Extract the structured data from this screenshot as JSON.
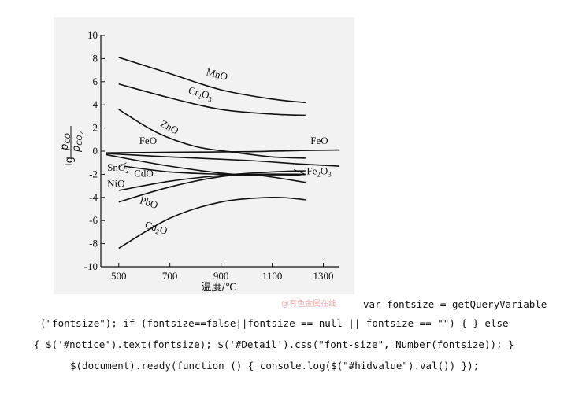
{
  "chart_data": {
    "type": "line",
    "xlabel": "温度/℃",
    "ylabel_main": "lg",
    "ylabel_num": "p",
    "ylabel_num_sub": "CO",
    "ylabel_den": "p",
    "ylabel_den_sub": "CO",
    "ylabel_den_sub2": "2",
    "xlim": [
      430,
      1360
    ],
    "ylim": [
      -10,
      10
    ],
    "xticks": [
      500,
      700,
      900,
      1100,
      1300
    ],
    "yticks": [
      10,
      8,
      6,
      4,
      2,
      0,
      -2,
      -4,
      -6,
      -8,
      -10
    ],
    "grid": false,
    "series": [
      {
        "name": "MnO",
        "x": [
          500,
          700,
          900,
          1100,
          1230
        ],
        "y": [
          8.1,
          6.7,
          5.3,
          4.5,
          4.2
        ]
      },
      {
        "name": "Cr2O3",
        "x": [
          500,
          700,
          900,
          1100,
          1230
        ],
        "y": [
          5.8,
          4.6,
          3.6,
          3.2,
          3.1
        ]
      },
      {
        "name": "ZnO",
        "x": [
          500,
          650,
          800,
          950,
          1100,
          1230
        ],
        "y": [
          3.6,
          1.6,
          0.4,
          -0.1,
          -0.5,
          -0.6
        ]
      },
      {
        "name": "FeO",
        "x": [
          450,
          700,
          1000,
          1200,
          1360
        ],
        "y": [
          -0.15,
          -0.1,
          -0.05,
          0.05,
          0.1
        ]
      },
      {
        "name": "Fe2O3",
        "x": [
          450,
          700,
          1000,
          1200,
          1360
        ],
        "y": [
          -0.2,
          -0.5,
          -0.8,
          -1.1,
          -1.3
        ]
      },
      {
        "name": "SnO2",
        "x": [
          450,
          700,
          950,
          1150,
          1230
        ],
        "y": [
          -0.3,
          -1.3,
          -2.0,
          -2.1,
          -2.0
        ]
      },
      {
        "name": "CdO",
        "x": [
          520,
          700,
          900,
          1050,
          1230
        ],
        "y": [
          -1.3,
          -1.8,
          -2.0,
          -2.1,
          -2.7
        ]
      },
      {
        "name": "NiO",
        "x": [
          500,
          700,
          900,
          1100,
          1230
        ],
        "y": [
          -3.4,
          -2.6,
          -2.1,
          -1.8,
          -1.7
        ]
      },
      {
        "name": "PbO",
        "x": [
          500,
          700,
          900,
          1050,
          1230
        ],
        "y": [
          -4.4,
          -3.1,
          -2.2,
          -2.0,
          -2.0
        ]
      },
      {
        "name": "Cu2O",
        "x": [
          500,
          700,
          900,
          1100,
          1230
        ],
        "y": [
          -8.4,
          -5.8,
          -4.4,
          -4.0,
          -4.2
        ]
      }
    ],
    "labels": [
      {
        "base": "MnO",
        "sub": "",
        "tail": "",
        "x": 840,
        "y": 6.6,
        "rotate": 15
      },
      {
        "base": "Cr",
        "sub": "2",
        "tail": "O",
        "sub2": "3",
        "x": 770,
        "y": 5.0,
        "rotate": 15
      },
      {
        "base": "ZnO",
        "sub": "",
        "tail": "",
        "x": 660,
        "y": 2.2,
        "rotate": 28
      },
      {
        "base": "FeO",
        "sub": "",
        "tail": "",
        "x": 580,
        "y": 0.6,
        "rotate": 0
      },
      {
        "base": "FeO",
        "sub": "",
        "tail": "",
        "x": 1250,
        "y": 0.6,
        "rotate": 0
      },
      {
        "base": "Fe",
        "sub": "2",
        "tail": "O",
        "sub2": "3",
        "x": 1235,
        "y": -2.0,
        "rotate": 0
      },
      {
        "base": "SnO",
        "sub": "2",
        "tail": "",
        "x": 455,
        "y": -1.7,
        "rotate": 0
      },
      {
        "base": "CdO",
        "sub": "",
        "tail": "",
        "x": 560,
        "y": -2.2,
        "rotate": 0
      },
      {
        "base": "NiO",
        "sub": "",
        "tail": "",
        "x": 455,
        "y": -3.1,
        "rotate": 0
      },
      {
        "base": "PbO",
        "sub": "",
        "tail": "",
        "x": 580,
        "y": -4.5,
        "rotate": 18
      },
      {
        "base": "Cu",
        "sub": "2",
        "tail": "O",
        "x": 600,
        "y": -6.6,
        "rotate": 18
      }
    ],
    "leader_lines": [
      {
        "from": [
          1230,
          -2.0
        ],
        "to": [
          1185,
          -1.6
        ]
      },
      {
        "from": [
          500,
          -1.4
        ],
        "to": [
          530,
          -1.0
        ]
      }
    ]
  },
  "watermark": "@有色金属在线",
  "code_lines": [
    "var fontsize = getQueryVariable",
    "(\"fontsize\"); if (fontsize==false||fontsize == null || fontsize == \"\") { } else",
    "{ $('#notice').text(fontsize); $('#Detail').css(\"font-size\", Number(fontsize)); }",
    "$(document).ready(function () { console.log($(\"#hidvalue\").val()) });"
  ]
}
